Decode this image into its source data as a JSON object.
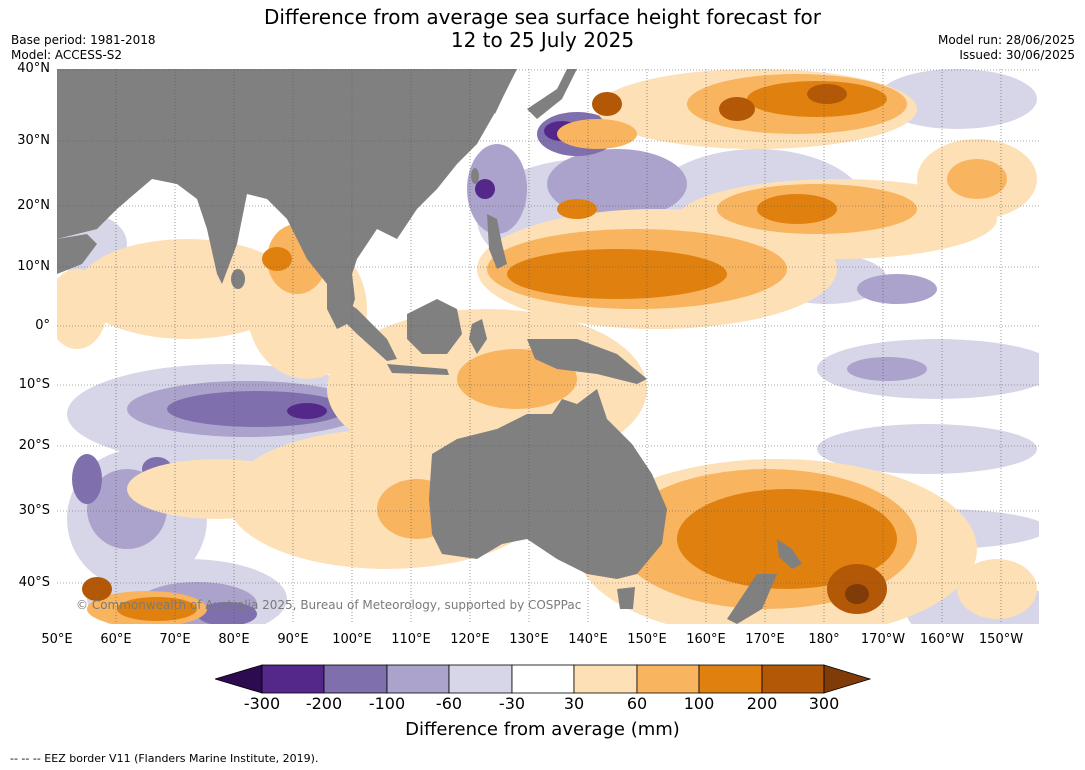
{
  "header": {
    "title_line1": "Difference from average sea surface height forecast for",
    "title_line2": "12 to 25 July 2025",
    "base_period": "Base period: 1981-2018",
    "model": "Model: ACCESS-S2",
    "model_run": "Model run: 28/06/2025",
    "issued": "Issued: 30/06/2025"
  },
  "map": {
    "lat_labels": [
      "40°N",
      "30°N",
      "20°N",
      "10°N",
      "0°",
      "10°S",
      "20°S",
      "30°S",
      "40°S"
    ],
    "lon_labels": [
      "50°E",
      "60°E",
      "70°E",
      "80°E",
      "90°E",
      "100°E",
      "110°E",
      "120°E",
      "130°E",
      "140°E",
      "150°E",
      "160°E",
      "170°E",
      "180°",
      "170°W",
      "160°W",
      "150°W"
    ],
    "copyright": "© Commonwealth of Australia 2025, Bureau of Meteorology, supported by COSPPac",
    "land_color": "#808080"
  },
  "colorbar": {
    "ticks": [
      "-300",
      "-200",
      "-100",
      "-60",
      "-30",
      "30",
      "60",
      "100",
      "200",
      "300"
    ],
    "colors": [
      "#2d0b50",
      "#54288a",
      "#7f6fad",
      "#aca3cd",
      "#d6d6e8",
      "#ffffff",
      "#fde0b6",
      "#f8b45e",
      "#e0810f",
      "#b35807",
      "#7f3b08"
    ],
    "title": "Difference from average (mm)"
  },
  "footer": {
    "eez_note": "-- -- -- EEZ border V11 (Flanders Marine Institute, 2019)."
  }
}
